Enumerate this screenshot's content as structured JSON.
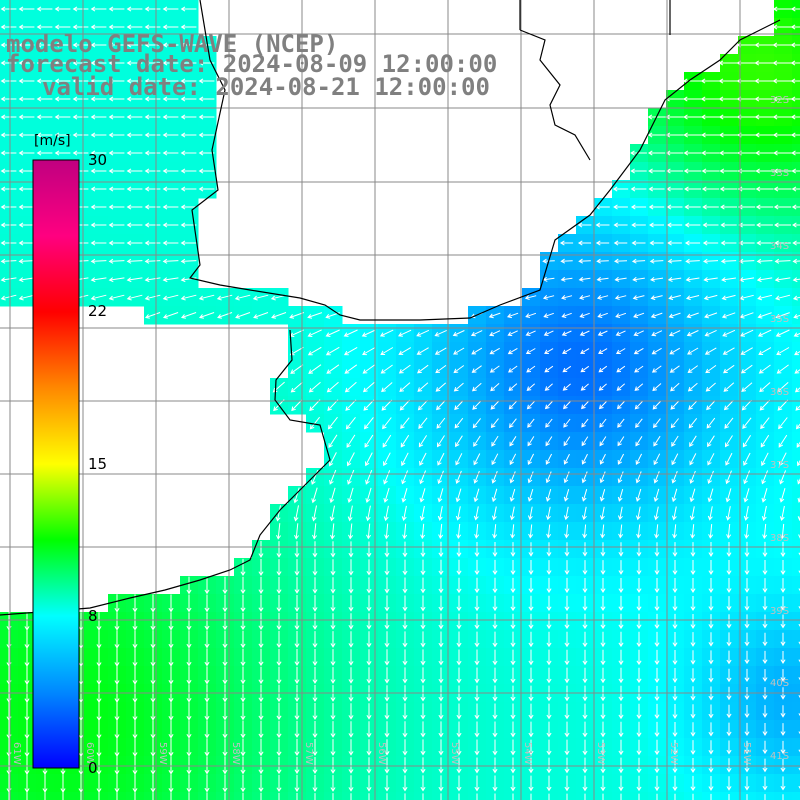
{
  "header": {
    "model": "modelo GEFS-WAVE (NCEP)",
    "forecast": "forecast date: 2024-08-09 12:00:00",
    "valid": "valid date: 2024-08-21 12:00:00"
  },
  "colorbar": {
    "unit": "[m/s]",
    "ticks": [
      {
        "label": "30",
        "value": 30
      },
      {
        "label": "22",
        "value": 22
      },
      {
        "label": "15",
        "value": 15
      },
      {
        "label": "8",
        "value": 8
      },
      {
        "label": "0",
        "value": 0
      }
    ],
    "stops": [
      "#0000ff",
      "#0088ff",
      "#00ffff",
      "#00ff00",
      "#ffff00",
      "#ff8800",
      "#ff0000",
      "#ff0080",
      "#c00080"
    ]
  },
  "chart_data": {
    "type": "heatmap",
    "variable": "wind speed",
    "units": "m/s",
    "value_range": [
      0,
      30
    ],
    "lat_labels": [
      "32S",
      "33S",
      "34S",
      "35S",
      "36S",
      "37S",
      "38S",
      "39S",
      "40S",
      "41S"
    ],
    "lon_labels": [
      "61W",
      "60W",
      "59W",
      "58W",
      "57W",
      "56W",
      "55W",
      "54W",
      "53W",
      "52W",
      "51W"
    ],
    "lat_range": [
      -41.3,
      -30.7
    ],
    "lon_range": [
      -61.2,
      -50.5
    ],
    "field_summary": {
      "mid_basin_minimum_ms": 3,
      "northeast_coast_ms": 12,
      "southwest_corner_ms": 11
    },
    "arrow_direction": "northeast to southwest"
  }
}
